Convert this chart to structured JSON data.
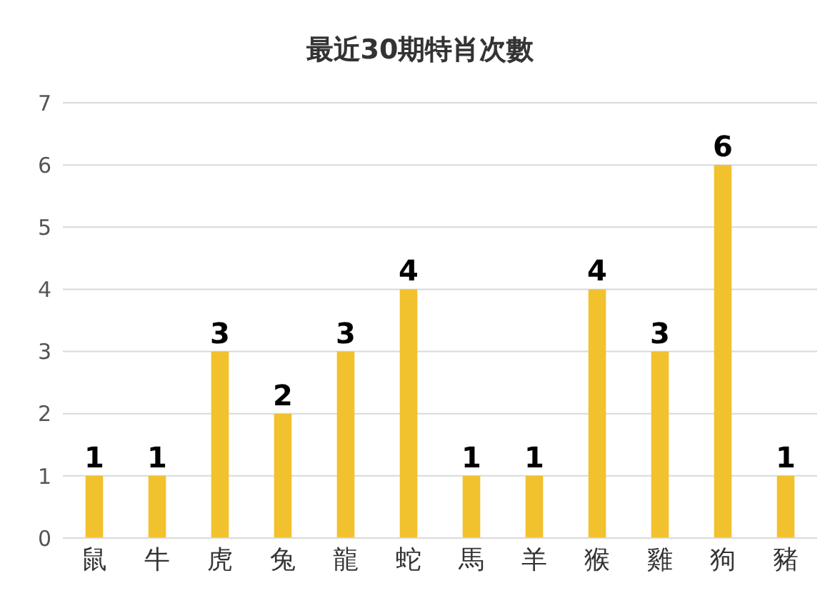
{
  "chart_data": {
    "type": "bar",
    "title": "最近30期特肖次數",
    "categories": [
      "鼠",
      "牛",
      "虎",
      "兔",
      "龍",
      "蛇",
      "馬",
      "羊",
      "猴",
      "雞",
      "狗",
      "豬"
    ],
    "values": [
      1,
      1,
      3,
      2,
      3,
      4,
      1,
      1,
      4,
      3,
      6,
      1
    ],
    "color": "#f2c12e",
    "ylim": [
      0,
      7
    ],
    "yticks": [
      0,
      1,
      2,
      3,
      4,
      5,
      6,
      7
    ],
    "grid": "y",
    "data_labels": true
  }
}
